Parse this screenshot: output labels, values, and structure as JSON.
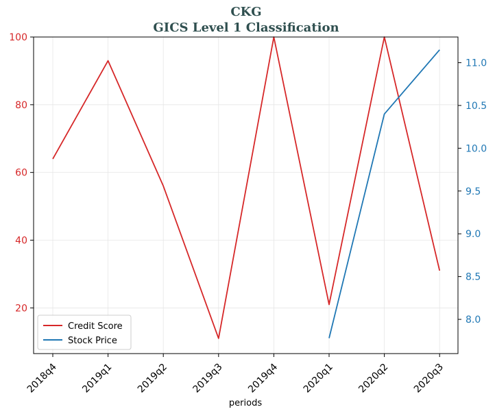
{
  "chart_data": {
    "type": "line",
    "title": "CKG",
    "subtitle": "GICS Level 1 Classification",
    "xlabel": "periods",
    "ylabel_left": "",
    "ylabel_right": "",
    "categories": [
      "2018q4",
      "2019q1",
      "2019q2",
      "2019q3",
      "2019q4",
      "2020q1",
      "2020q2",
      "2020q3"
    ],
    "ylim_left": [
      6.5,
      100
    ],
    "yticks_left": [
      20,
      40,
      60,
      80,
      100
    ],
    "ylim_right": [
      7.6,
      11.3
    ],
    "yticks_right": [
      "8.0",
      "8.5",
      "9.0",
      "9.5",
      "10.0",
      "10.5",
      "11.0"
    ],
    "grid": true,
    "legend_position": "lower-left",
    "series": [
      {
        "name": "Credit Score",
        "axis": "left",
        "color": "#d62728",
        "values": [
          64,
          93,
          56,
          11,
          100,
          21,
          100,
          31
        ]
      },
      {
        "name": "Stock Price",
        "axis": "right",
        "color": "#1f77b4",
        "values": [
          null,
          null,
          null,
          null,
          null,
          7.78,
          10.4,
          11.15
        ]
      }
    ],
    "left_axis_color": "#d62728",
    "right_axis_color": "#1f77b4",
    "title_color": "#2f4f4f"
  }
}
